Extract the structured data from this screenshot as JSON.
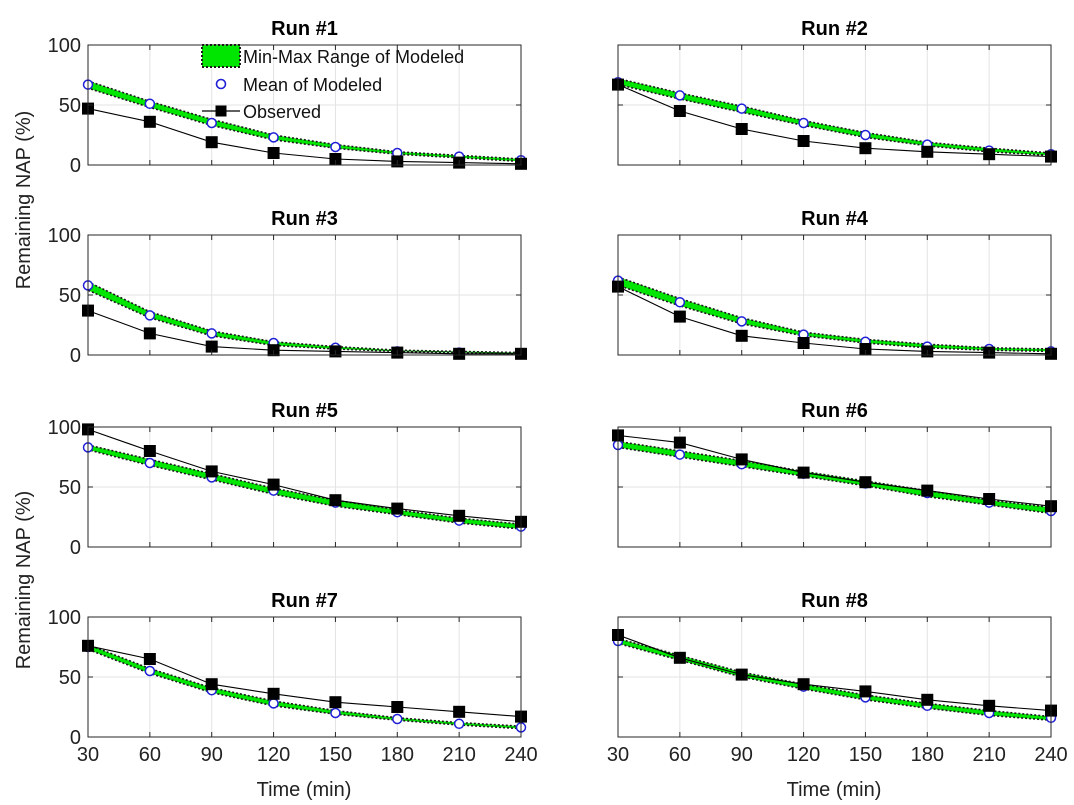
{
  "figure": {
    "ylabel": "Remaining NAP (%)",
    "xlabel": "Time (min)"
  },
  "legend": {
    "items": [
      {
        "label": "Min-Max Range of Modeled",
        "icon": "green-range-patch"
      },
      {
        "label": "Mean of Modeled",
        "icon": "blue-circle-marker"
      },
      {
        "label": "Observed",
        "icon": "black-square-line"
      }
    ],
    "placement": "top-right of Run #1 panel"
  },
  "colors": {
    "range_fill": "#00e600",
    "range_edge": "#1a1a1a",
    "mean_marker": "#1f1fd6",
    "observed": "#000000",
    "grid": "#e3e3e3",
    "axes": "#262626"
  },
  "chart_data": [
    {
      "type": "line",
      "title": "Run #1",
      "x": [
        30,
        60,
        90,
        120,
        150,
        180,
        210,
        240
      ],
      "xlim": [
        30,
        240
      ],
      "ylim": [
        0,
        100
      ],
      "xticks": [
        "30",
        "60",
        "90",
        "120",
        "150",
        "180",
        "210",
        "240"
      ],
      "yticks": [
        "0",
        "50",
        "100"
      ],
      "grid": true,
      "series": [
        {
          "name": "Min-Max Range of Modeled",
          "kind": "range",
          "lower": [
            64,
            48,
            33,
            21,
            14,
            9,
            6,
            3
          ],
          "upper": [
            70,
            53,
            38,
            25,
            17,
            11,
            8,
            5
          ]
        },
        {
          "name": "Mean of Modeled",
          "values": [
            67,
            51,
            35,
            23,
            15,
            10,
            7,
            4
          ]
        },
        {
          "name": "Observed",
          "values": [
            47,
            36,
            19,
            10,
            5,
            3,
            2,
            1
          ]
        }
      ]
    },
    {
      "type": "line",
      "title": "Run #2",
      "x": [
        30,
        60,
        90,
        120,
        150,
        180,
        210,
        240
      ],
      "xlim": [
        30,
        240
      ],
      "ylim": [
        0,
        100
      ],
      "xticks": [
        "30",
        "60",
        "90",
        "120",
        "150",
        "180",
        "210",
        "240"
      ],
      "yticks": [
        "0",
        "50",
        "100"
      ],
      "grid": true,
      "series": [
        {
          "name": "Min-Max Range of Modeled",
          "kind": "range",
          "lower": [
            67,
            55,
            44,
            33,
            23,
            16,
            11,
            8
          ],
          "upper": [
            72,
            60,
            49,
            37,
            27,
            19,
            14,
            10
          ]
        },
        {
          "name": "Mean of Modeled",
          "values": [
            69,
            58,
            47,
            35,
            25,
            17,
            12,
            9
          ]
        },
        {
          "name": "Observed",
          "values": [
            67,
            45,
            30,
            20,
            14,
            11,
            9,
            7
          ]
        }
      ]
    },
    {
      "type": "line",
      "title": "Run #3",
      "x": [
        30,
        60,
        90,
        120,
        150,
        180,
        210,
        240
      ],
      "xlim": [
        30,
        240
      ],
      "ylim": [
        0,
        100
      ],
      "xticks": [
        "30",
        "60",
        "90",
        "120",
        "150",
        "180",
        "210",
        "240"
      ],
      "yticks": [
        "0",
        "50",
        "100"
      ],
      "grid": true,
      "series": [
        {
          "name": "Min-Max Range of Modeled",
          "kind": "range",
          "lower": [
            54,
            31,
            16,
            8,
            5,
            3,
            2,
            1
          ],
          "upper": [
            61,
            36,
            20,
            11,
            7,
            4,
            3,
            2
          ]
        },
        {
          "name": "Mean of Modeled",
          "values": [
            58,
            33,
            18,
            10,
            6,
            3,
            2,
            1
          ]
        },
        {
          "name": "Observed",
          "values": [
            37,
            18,
            7,
            4,
            3,
            2,
            1,
            1
          ]
        }
      ]
    },
    {
      "type": "line",
      "title": "Run #4",
      "x": [
        30,
        60,
        90,
        120,
        150,
        180,
        210,
        240
      ],
      "xlim": [
        30,
        240
      ],
      "ylim": [
        0,
        100
      ],
      "xticks": [
        "30",
        "60",
        "90",
        "120",
        "150",
        "180",
        "210",
        "240"
      ],
      "yticks": [
        "0",
        "50",
        "100"
      ],
      "grid": true,
      "series": [
        {
          "name": "Min-Max Range of Modeled",
          "kind": "range",
          "lower": [
            58,
            41,
            26,
            16,
            10,
            6,
            4,
            3
          ],
          "upper": [
            65,
            47,
            31,
            19,
            13,
            9,
            6,
            5
          ]
        },
        {
          "name": "Mean of Modeled",
          "values": [
            62,
            44,
            28,
            17,
            11,
            7,
            5,
            3
          ]
        },
        {
          "name": "Observed",
          "values": [
            57,
            32,
            16,
            10,
            5,
            3,
            2,
            1
          ]
        }
      ]
    },
    {
      "type": "line",
      "title": "Run #5",
      "x": [
        30,
        60,
        90,
        120,
        150,
        180,
        210,
        240
      ],
      "xlim": [
        30,
        240
      ],
      "ylim": [
        0,
        100
      ],
      "xticks": [
        "30",
        "60",
        "90",
        "120",
        "150",
        "180",
        "210",
        "240"
      ],
      "yticks": [
        "0",
        "50",
        "100"
      ],
      "grid": true,
      "series": [
        {
          "name": "Min-Max Range of Modeled",
          "kind": "range",
          "lower": [
            81,
            68,
            56,
            44,
            34,
            27,
            20,
            15
          ],
          "upper": [
            85,
            73,
            61,
            49,
            39,
            31,
            24,
            19
          ]
        },
        {
          "name": "Mean of Modeled",
          "values": [
            83,
            70,
            58,
            47,
            37,
            29,
            22,
            17
          ]
        },
        {
          "name": "Observed",
          "values": [
            98,
            80,
            63,
            52,
            39,
            32,
            26,
            21
          ]
        }
      ]
    },
    {
      "type": "line",
      "title": "Run #6",
      "x": [
        30,
        60,
        90,
        120,
        150,
        180,
        210,
        240
      ],
      "xlim": [
        30,
        240
      ],
      "ylim": [
        0,
        100
      ],
      "xticks": [
        "30",
        "60",
        "90",
        "120",
        "150",
        "180",
        "210",
        "240"
      ],
      "yticks": [
        "0",
        "50",
        "100"
      ],
      "grid": true,
      "series": [
        {
          "name": "Min-Max Range of Modeled",
          "kind": "range",
          "lower": [
            83,
            75,
            67,
            59,
            51,
            42,
            35,
            28
          ],
          "upper": [
            88,
            80,
            72,
            63,
            55,
            47,
            39,
            33
          ]
        },
        {
          "name": "Mean of Modeled",
          "values": [
            85,
            77,
            69,
            61,
            53,
            45,
            37,
            30
          ]
        },
        {
          "name": "Observed",
          "values": [
            93,
            87,
            73,
            62,
            54,
            47,
            40,
            34
          ]
        }
      ]
    },
    {
      "type": "line",
      "title": "Run #7",
      "x": [
        30,
        60,
        90,
        120,
        150,
        180,
        210,
        240
      ],
      "xlim": [
        30,
        240
      ],
      "ylim": [
        0,
        100
      ],
      "xticks": [
        "30",
        "60",
        "90",
        "120",
        "150",
        "180",
        "210",
        "240"
      ],
      "yticks": [
        "0",
        "50",
        "100"
      ],
      "grid": true,
      "series": [
        {
          "name": "Min-Max Range of Modeled",
          "kind": "range",
          "lower": [
            73,
            53,
            37,
            26,
            19,
            14,
            10,
            7
          ],
          "upper": [
            77,
            57,
            41,
            30,
            22,
            16,
            12,
            9
          ]
        },
        {
          "name": "Mean of Modeled",
          "values": [
            75,
            55,
            39,
            28,
            20,
            15,
            11,
            8
          ]
        },
        {
          "name": "Observed",
          "values": [
            76,
            65,
            44,
            36,
            29,
            25,
            21,
            17
          ]
        }
      ]
    },
    {
      "type": "line",
      "title": "Run #8",
      "x": [
        30,
        60,
        90,
        120,
        150,
        180,
        210,
        240
      ],
      "xlim": [
        30,
        240
      ],
      "ylim": [
        0,
        100
      ],
      "xticks": [
        "30",
        "60",
        "90",
        "120",
        "150",
        "180",
        "210",
        "240"
      ],
      "yticks": [
        "0",
        "50",
        "100"
      ],
      "grid": true,
      "series": [
        {
          "name": "Min-Max Range of Modeled",
          "kind": "range",
          "lower": [
            78,
            64,
            50,
            40,
            31,
            24,
            18,
            14
          ],
          "upper": [
            82,
            68,
            54,
            44,
            35,
            28,
            22,
            17
          ]
        },
        {
          "name": "Mean of Modeled",
          "values": [
            80,
            66,
            52,
            42,
            33,
            26,
            20,
            16
          ]
        },
        {
          "name": "Observed",
          "values": [
            85,
            66,
            52,
            44,
            38,
            31,
            26,
            22
          ]
        }
      ]
    }
  ]
}
